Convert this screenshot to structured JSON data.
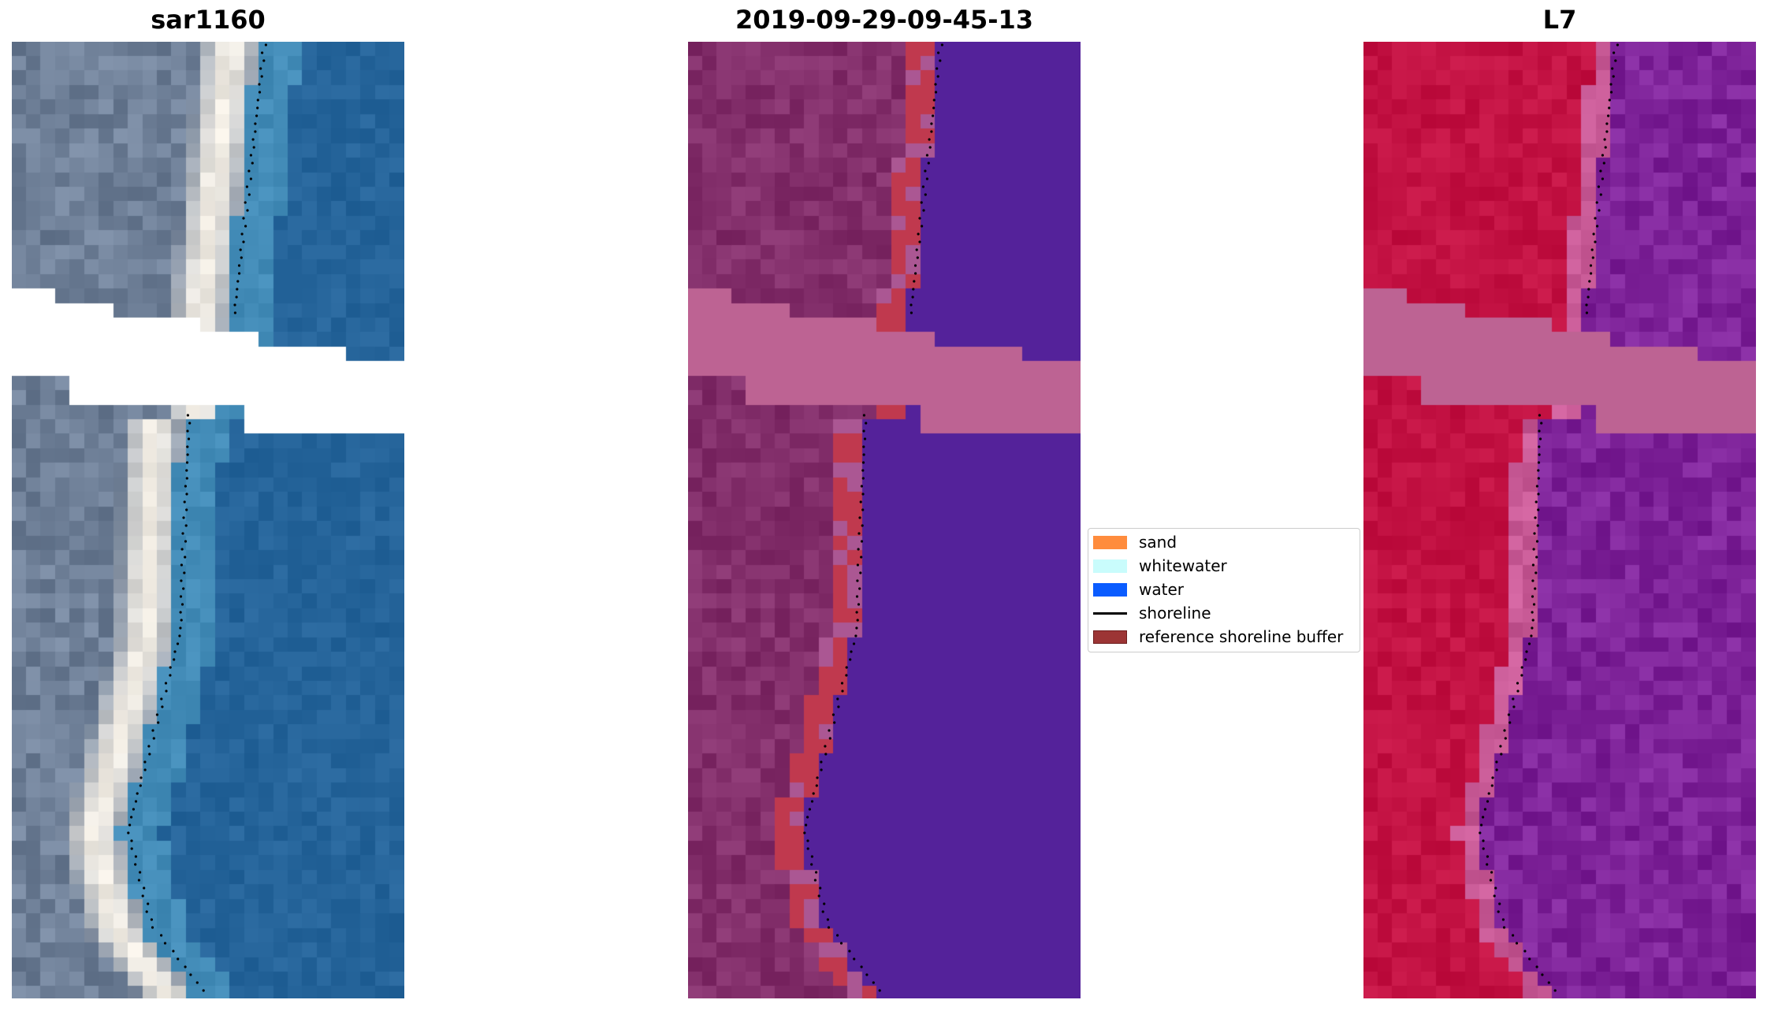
{
  "panels": [
    {
      "title": "sar1160"
    },
    {
      "title": "2019-09-29-09-45-13"
    },
    {
      "title": "L7"
    }
  ],
  "legend": {
    "items": [
      {
        "label": "sand",
        "color": "#ff8c3d",
        "kind": "patch"
      },
      {
        "label": "whitewater",
        "color": "#c9fcfc",
        "kind": "patch"
      },
      {
        "label": "water",
        "color": "#0a5cff",
        "kind": "patch"
      },
      {
        "label": "shoreline",
        "color": "#000000",
        "kind": "line"
      },
      {
        "label": "reference shoreline buffer",
        "color": "#9c3535",
        "edge": "#6e1e1e",
        "kind": "patch"
      }
    ]
  },
  "colors": {
    "rgb_land": "#6f8098",
    "rgb_sand": "#f2ede4",
    "rgb_water": "#25649a",
    "class_land": "#832f6b",
    "class_buffer": "#c0394e",
    "class_water": "#54229a",
    "nodata": "#bd6393",
    "nir_land": "#c31243",
    "nir_water": "#7e2399"
  }
}
